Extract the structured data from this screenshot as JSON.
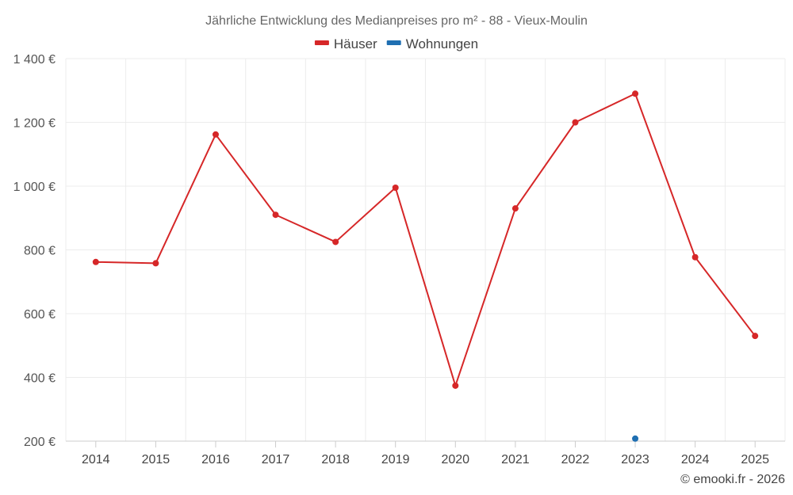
{
  "chart_data": {
    "type": "line",
    "title": "Jährliche Entwicklung des Medianpreises pro m² - 88 - Vieux-Moulin",
    "xlabel": "",
    "ylabel": "",
    "categories": [
      "2014",
      "2015",
      "2016",
      "2017",
      "2018",
      "2019",
      "2020",
      "2021",
      "2022",
      "2023",
      "2024",
      "2025"
    ],
    "ylim": [
      200,
      1400
    ],
    "yticks": [
      200,
      400,
      600,
      800,
      1000,
      1200,
      1400
    ],
    "ytick_labels": [
      "200 €",
      "400 €",
      "600 €",
      "800 €",
      "1 000 €",
      "1 200 €",
      "1 400 €"
    ],
    "grid": true,
    "legend_position": "top-center",
    "series": [
      {
        "name": "Häuser",
        "color": "#d62728",
        "values": [
          762,
          758,
          1162,
          910,
          825,
          995,
          374,
          930,
          1200,
          1290,
          777,
          530
        ]
      },
      {
        "name": "Wohnungen",
        "color": "#1f6fb2",
        "values": [
          null,
          null,
          null,
          null,
          null,
          null,
          null,
          null,
          null,
          208,
          null,
          null
        ]
      }
    ],
    "credit": "© emooki.fr - 2026"
  }
}
